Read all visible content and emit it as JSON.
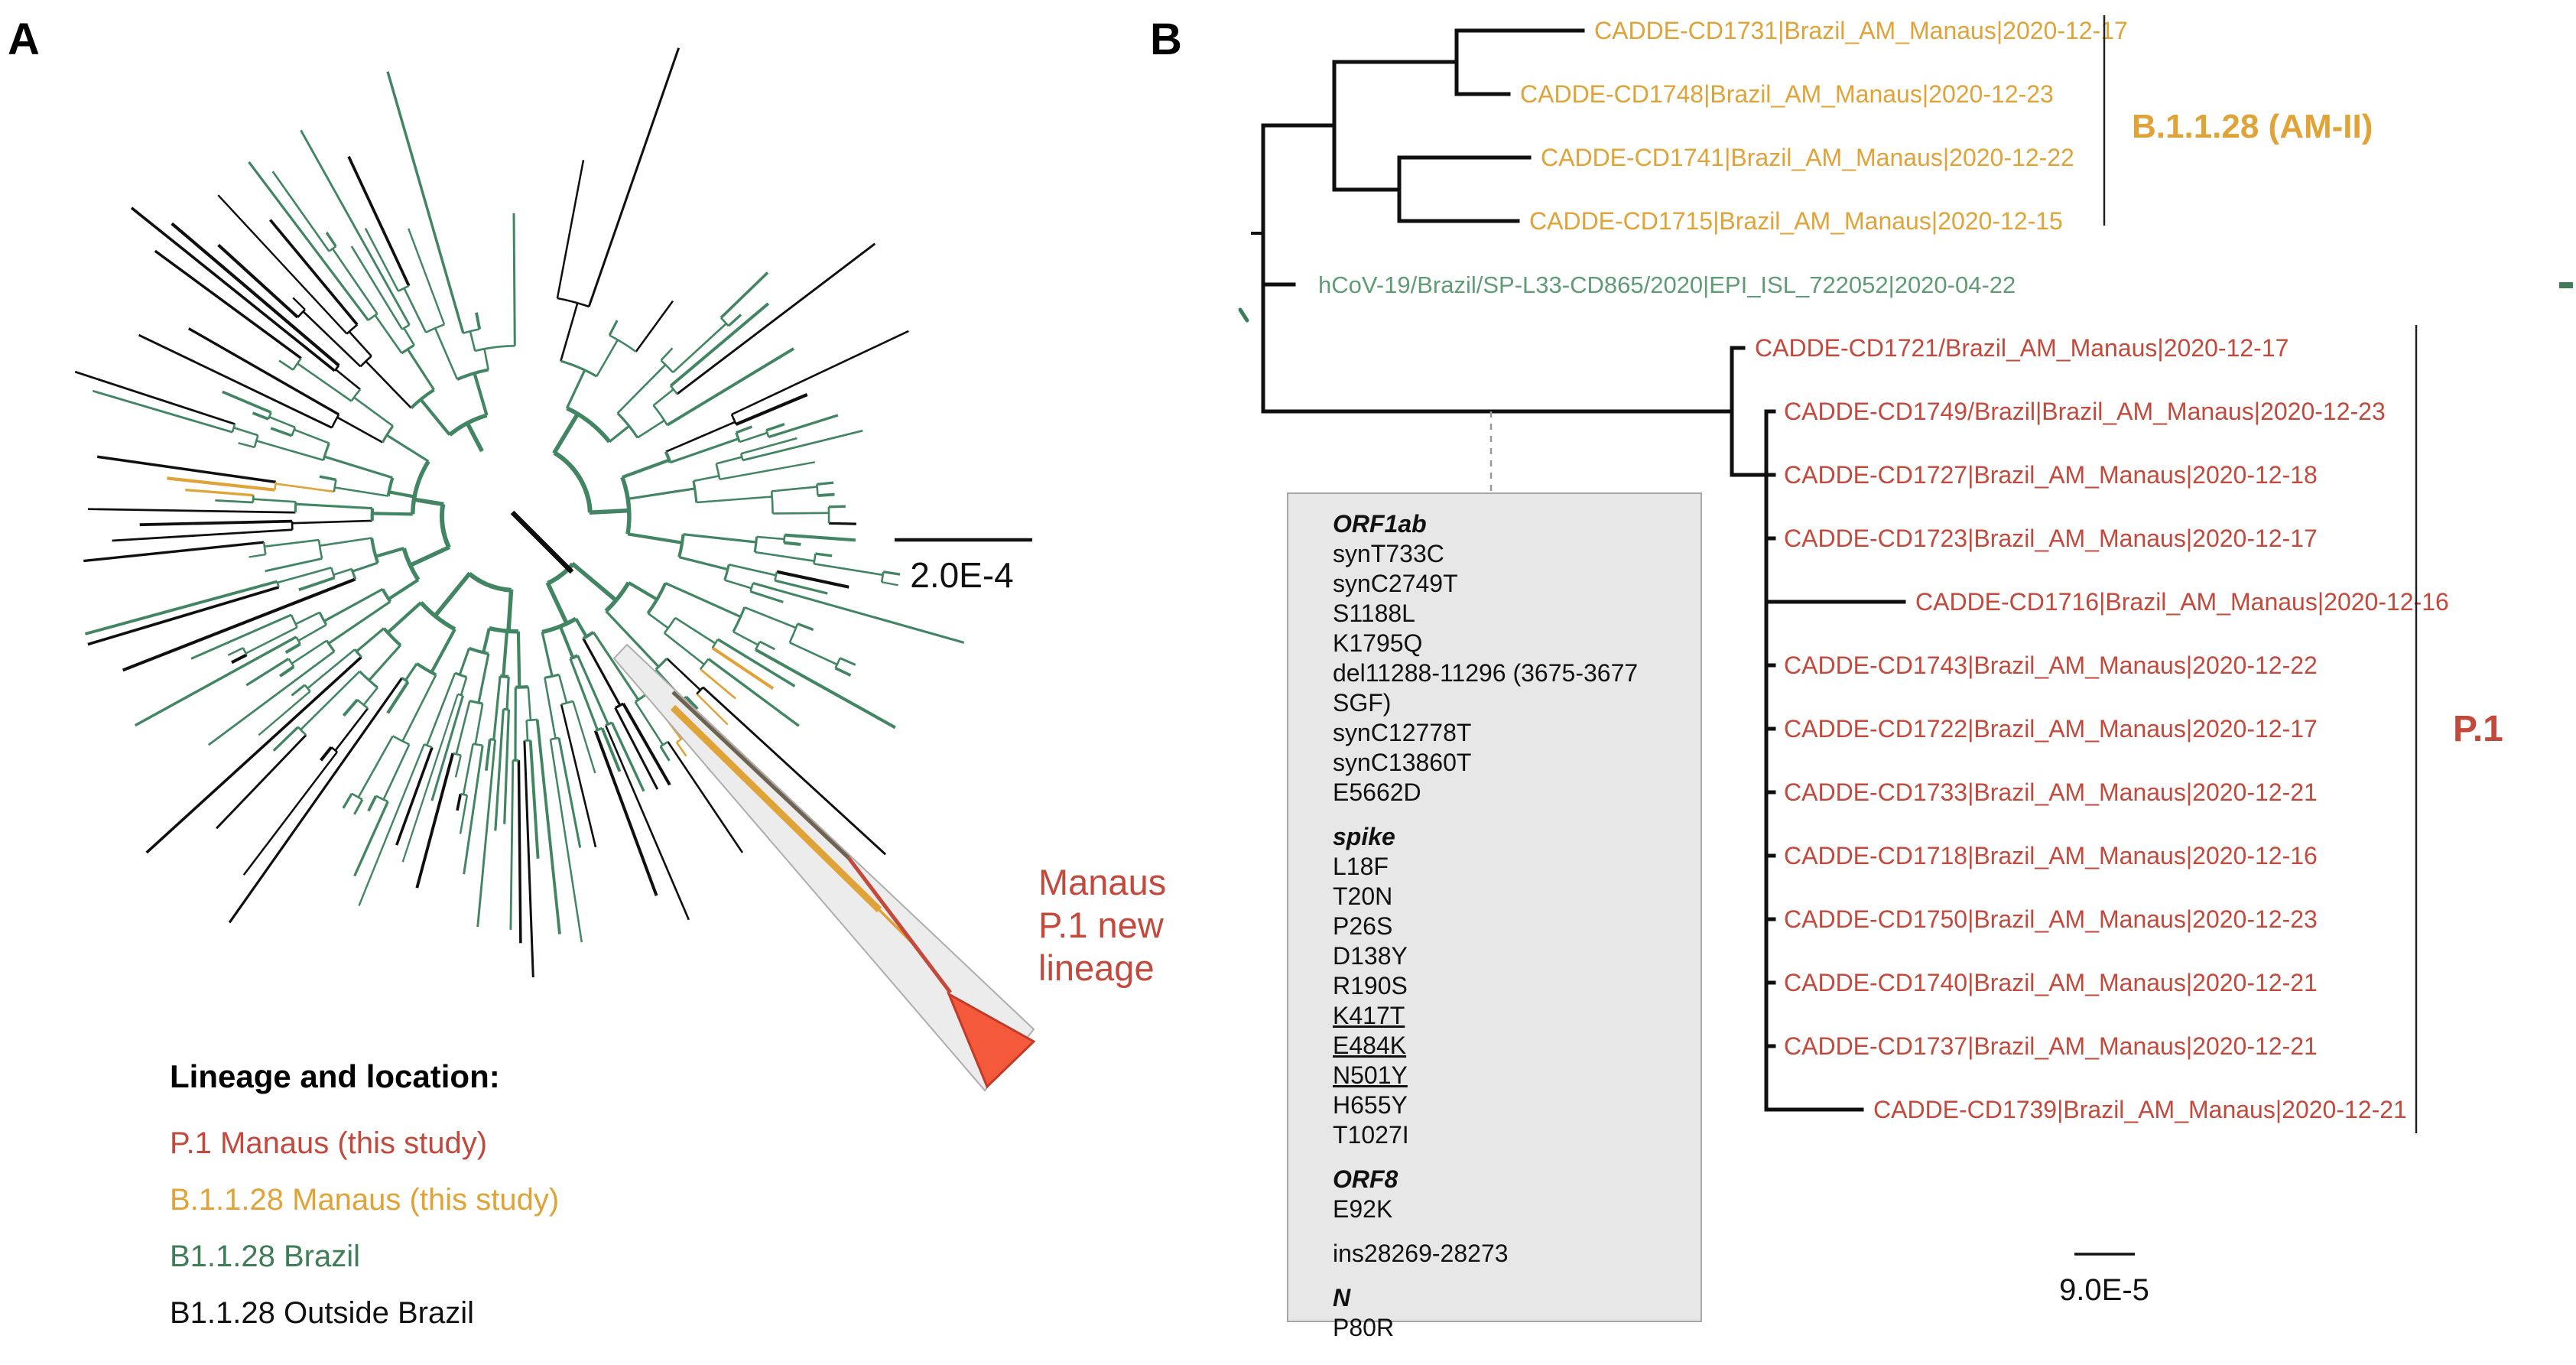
{
  "figure": {
    "palette": {
      "p1_red": "#C2493B",
      "amii_orange": "#DFA337",
      "brazil_green": "#3E7D57",
      "tree_green": "#428563",
      "tip_green": "#5F9C75",
      "outside_black": "#111111",
      "branch_black": "#0F0F0F",
      "triangle_red": "#F4593B",
      "triangle_border": "#C23A28",
      "wedge_fill": "#ECECEC",
      "wedge_border": "#ADADAD",
      "box_bg": "#E7E7E7",
      "dashed_gray": "#999999"
    },
    "panel_a": {
      "label": "A",
      "scale_bar": "2.0E-4",
      "highlight_label": "Manaus\nP.1 new\nlineage",
      "legend": {
        "title": "Lineage and location:",
        "items": [
          {
            "label": "P.1 Manaus (this study)",
            "color": "#C2493B"
          },
          {
            "label": "B.1.1.28 Manaus (this study)",
            "color": "#DFA337"
          },
          {
            "label": "B1.1.28 Brazil",
            "color": "#3E7D57"
          },
          {
            "label": "B1.1.28 Outside Brazil",
            "color": "#111111"
          }
        ]
      }
    },
    "panel_b": {
      "label": "B",
      "scale_bar": "9.0E-5",
      "clades": [
        {
          "name": "B.1.1.28 (AM-II)",
          "color": "#DFA337"
        },
        {
          "name": "P.1",
          "color": "#C2493B"
        }
      ],
      "tips": [
        {
          "label": "CADDE-CD1731|Brazil_AM_Manaus|2020-12-17",
          "clade": "amii"
        },
        {
          "label": "CADDE-CD1748|Brazil_AM_Manaus|2020-12-23",
          "clade": "amii"
        },
        {
          "label": "CADDE-CD1741|Brazil_AM_Manaus|2020-12-22",
          "clade": "amii"
        },
        {
          "label": "CADDE-CD1715|Brazil_AM_Manaus|2020-12-15",
          "clade": "amii"
        },
        {
          "label": "hCoV-19/Brazil/SP-L33-CD865/2020|EPI_ISL_722052|2020-04-22",
          "clade": "context"
        },
        {
          "label": "CADDE-CD1721/Brazil_AM_Manaus|2020-12-17",
          "clade": "p1"
        },
        {
          "label": "CADDE-CD1749/Brazil|Brazil_AM_Manaus|2020-12-23",
          "clade": "p1"
        },
        {
          "label": "CADDE-CD1727|Brazil_AM_Manaus|2020-12-18",
          "clade": "p1"
        },
        {
          "label": "CADDE-CD1723|Brazil_AM_Manaus|2020-12-17",
          "clade": "p1"
        },
        {
          "label": "CADDE-CD1716|Brazil_AM_Manaus|2020-12-16",
          "clade": "p1"
        },
        {
          "label": "CADDE-CD1743|Brazil_AM_Manaus|2020-12-22",
          "clade": "p1"
        },
        {
          "label": "CADDE-CD1722|Brazil_AM_Manaus|2020-12-17",
          "clade": "p1"
        },
        {
          "label": "CADDE-CD1733|Brazil_AM_Manaus|2020-12-21",
          "clade": "p1"
        },
        {
          "label": "CADDE-CD1718|Brazil_AM_Manaus|2020-12-16",
          "clade": "p1"
        },
        {
          "label": "CADDE-CD1750|Brazil_AM_Manaus|2020-12-23",
          "clade": "p1"
        },
        {
          "label": "CADDE-CD1740|Brazil_AM_Manaus|2020-12-21",
          "clade": "p1"
        },
        {
          "label": "CADDE-CD1737|Brazil_AM_Manaus|2020-12-21",
          "clade": "p1"
        },
        {
          "label": "CADDE-CD1739|Brazil_AM_Manaus|2020-12-21",
          "clade": "p1"
        }
      ],
      "mutations": {
        "underlined": [
          "K417T",
          "E484K",
          "N501Y"
        ],
        "sections": [
          {
            "gene": "ORF1ab",
            "items": [
              "synT733C",
              "synC2749T",
              "S1188L",
              "K1795Q",
              "del11288-11296 (3675-3677 SGF)",
              "synC12778T",
              "synC13860T",
              "E5662D"
            ]
          },
          {
            "gene": "spike",
            "items": [
              "L18F",
              "T20N",
              "P26S",
              "D138Y",
              "R190S",
              "K417T",
              "E484K",
              "N501Y",
              "H655Y",
              "T1027I"
            ]
          },
          {
            "gene": "ORF8",
            "items": [
              "E92K"
            ]
          },
          {
            "gene": "",
            "items": [
              "ins28269-28273"
            ]
          },
          {
            "gene": "N",
            "items": [
              "P80R"
            ]
          }
        ]
      }
    }
  }
}
